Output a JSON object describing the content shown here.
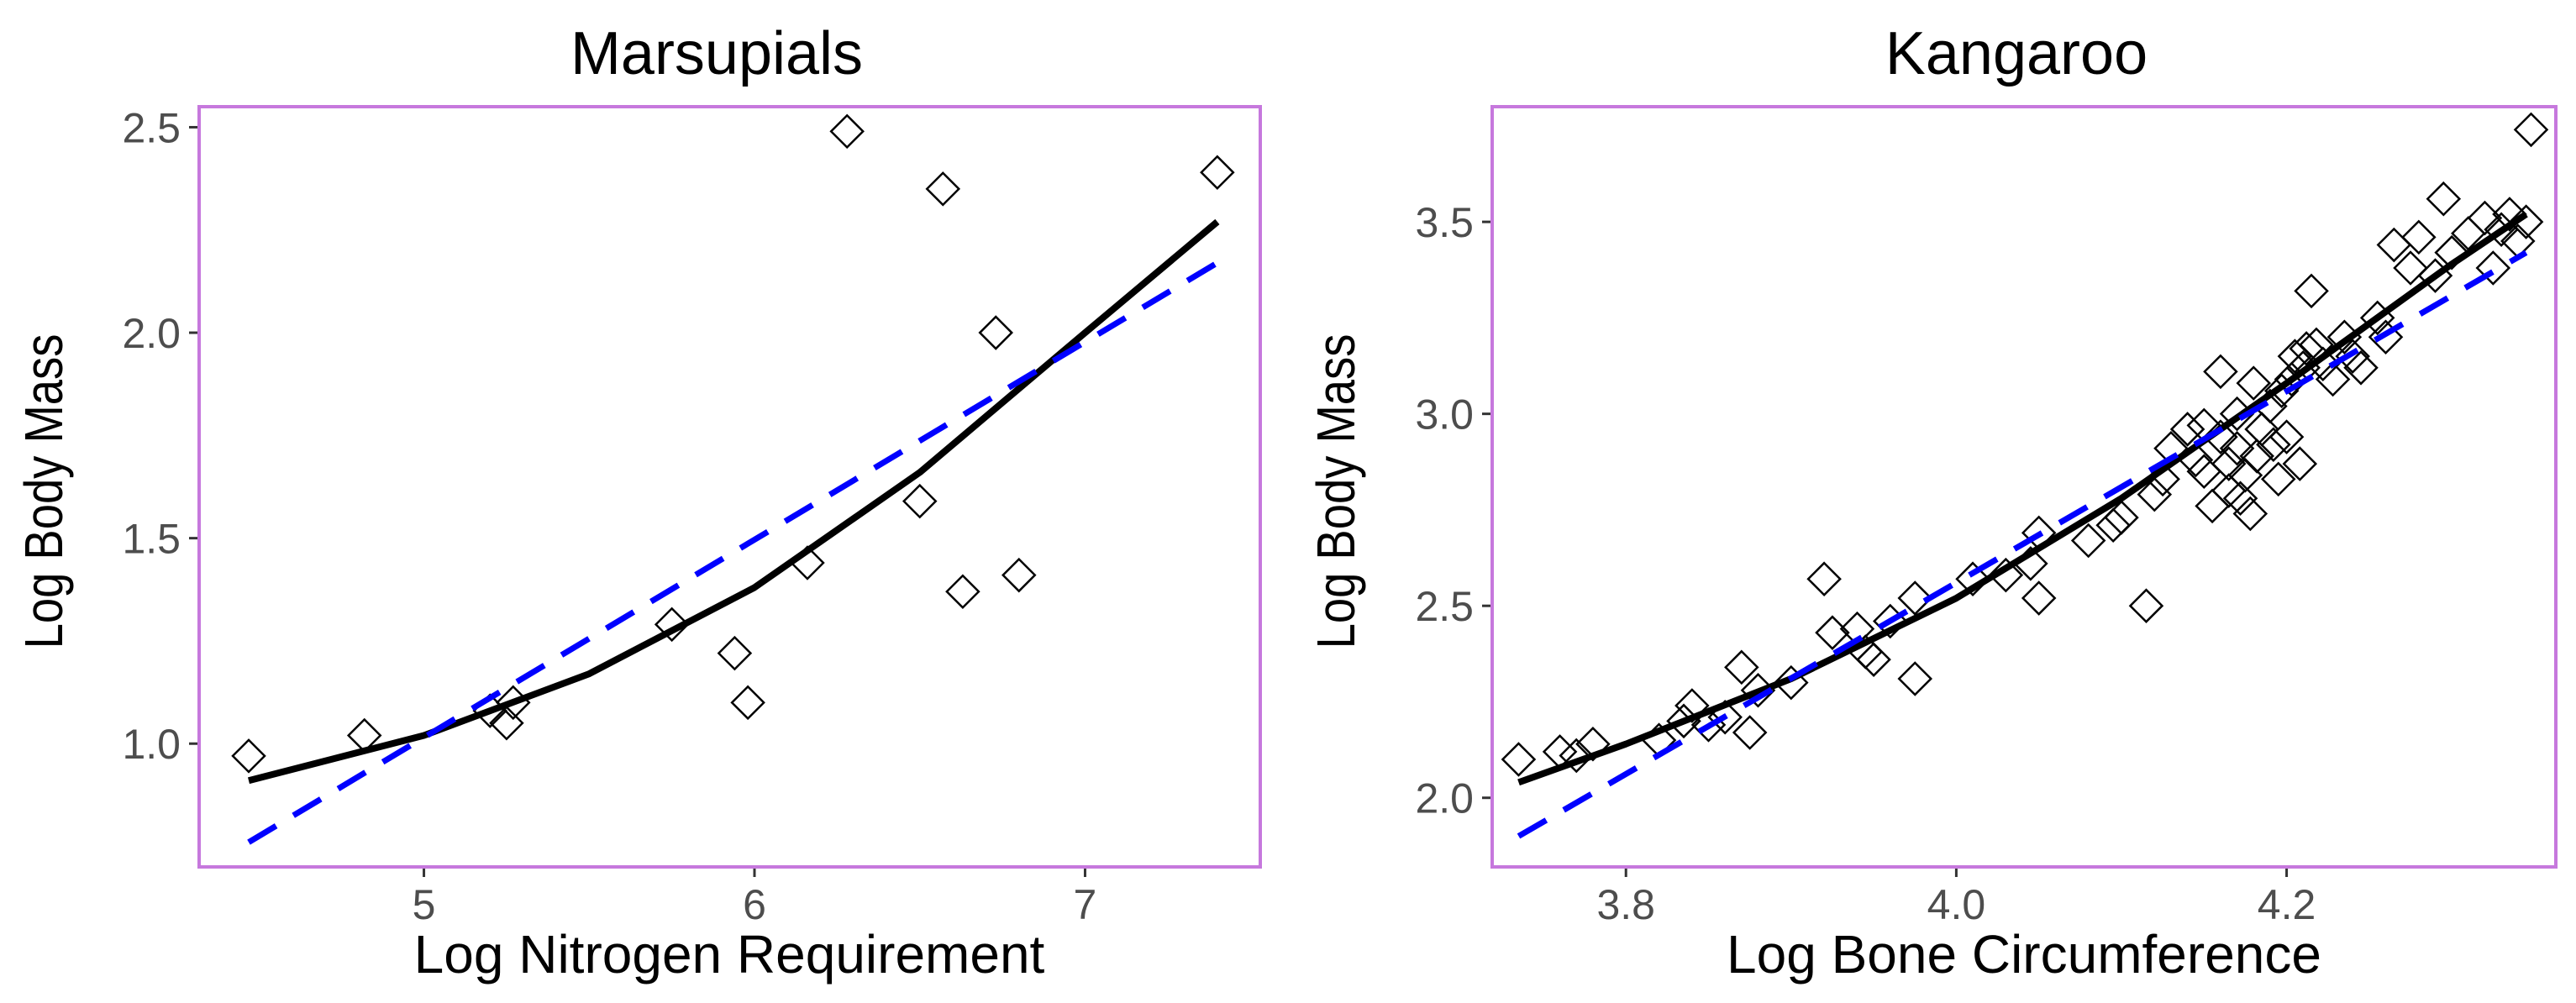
{
  "chart_data": [
    {
      "type": "scatter",
      "title": "Marsupials",
      "xlabel": "Log Nitrogen Requirement",
      "ylabel": "Log Body Mass",
      "xlim": [
        4.32,
        7.53
      ],
      "ylim": [
        0.7,
        2.55
      ],
      "xticks": [
        5,
        6,
        7
      ],
      "xtick_labels": [
        "5",
        "6",
        "7"
      ],
      "yticks": [
        1.0,
        1.5,
        2.0,
        2.5
      ],
      "ytick_labels": [
        "1.0",
        "1.5",
        "2.0",
        "2.5"
      ],
      "points": [
        {
          "x": 4.47,
          "y": 0.97
        },
        {
          "x": 4.82,
          "y": 1.02
        },
        {
          "x": 5.2,
          "y": 1.08
        },
        {
          "x": 5.25,
          "y": 1.05
        },
        {
          "x": 5.27,
          "y": 1.1
        },
        {
          "x": 5.75,
          "y": 1.29
        },
        {
          "x": 5.94,
          "y": 1.22
        },
        {
          "x": 5.98,
          "y": 1.1
        },
        {
          "x": 6.16,
          "y": 1.44
        },
        {
          "x": 6.28,
          "y": 2.49
        },
        {
          "x": 6.5,
          "y": 1.59
        },
        {
          "x": 6.57,
          "y": 2.35
        },
        {
          "x": 6.63,
          "y": 1.37
        },
        {
          "x": 6.73,
          "y": 2.0
        },
        {
          "x": 6.8,
          "y": 1.41
        },
        {
          "x": 7.4,
          "y": 2.39
        }
      ],
      "series": [
        {
          "name": "fitted curve (solid black)",
          "style": "solid",
          "color": "#000000",
          "x": [
            4.47,
            5.0,
            5.5,
            6.0,
            6.5,
            7.0,
            7.4
          ],
          "y": [
            0.91,
            1.02,
            1.17,
            1.38,
            1.66,
            2.0,
            2.27
          ]
        },
        {
          "name": "linear fit (dashed blue)",
          "style": "dashed",
          "color": "#0000ff",
          "x": [
            4.47,
            7.4
          ],
          "y": [
            0.76,
            2.17
          ]
        }
      ]
    },
    {
      "type": "scatter",
      "title": "Kangaroo",
      "xlabel": "Log Bone Circumference",
      "ylabel": "Log Body Mass",
      "xlim": [
        3.719,
        4.363
      ],
      "ylim": [
        1.82,
        3.8
      ],
      "xticks": [
        3.8,
        4.0,
        4.2
      ],
      "xtick_labels": [
        "3.8",
        "4.0",
        "4.2"
      ],
      "yticks": [
        2.0,
        2.5,
        3.0,
        3.5
      ],
      "ytick_labels": [
        "2.0",
        "2.5",
        "3.0",
        "3.5"
      ],
      "points": [
        {
          "x": 3.735,
          "y": 2.1
        },
        {
          "x": 3.76,
          "y": 2.12
        },
        {
          "x": 3.77,
          "y": 2.11
        },
        {
          "x": 3.78,
          "y": 2.14
        },
        {
          "x": 3.82,
          "y": 2.15
        },
        {
          "x": 3.835,
          "y": 2.2
        },
        {
          "x": 3.84,
          "y": 2.24
        },
        {
          "x": 3.85,
          "y": 2.19
        },
        {
          "x": 3.86,
          "y": 2.21
        },
        {
          "x": 3.87,
          "y": 2.34
        },
        {
          "x": 3.875,
          "y": 2.17
        },
        {
          "x": 3.88,
          "y": 2.28
        },
        {
          "x": 3.9,
          "y": 2.3
        },
        {
          "x": 3.92,
          "y": 2.57
        },
        {
          "x": 3.925,
          "y": 2.43
        },
        {
          "x": 3.94,
          "y": 2.44
        },
        {
          "x": 3.945,
          "y": 2.38
        },
        {
          "x": 3.95,
          "y": 2.36
        },
        {
          "x": 3.96,
          "y": 2.46
        },
        {
          "x": 3.975,
          "y": 2.52
        },
        {
          "x": 3.975,
          "y": 2.31
        },
        {
          "x": 4.01,
          "y": 2.57
        },
        {
          "x": 4.03,
          "y": 2.58
        },
        {
          "x": 4.045,
          "y": 2.61
        },
        {
          "x": 4.05,
          "y": 2.52
        },
        {
          "x": 4.05,
          "y": 2.69
        },
        {
          "x": 4.08,
          "y": 2.67
        },
        {
          "x": 4.095,
          "y": 2.71
        },
        {
          "x": 4.1,
          "y": 2.73
        },
        {
          "x": 4.115,
          "y": 2.5
        },
        {
          "x": 4.12,
          "y": 2.79
        },
        {
          "x": 4.125,
          "y": 2.83
        },
        {
          "x": 4.13,
          "y": 2.91
        },
        {
          "x": 4.14,
          "y": 2.96
        },
        {
          "x": 4.145,
          "y": 2.88
        },
        {
          "x": 4.15,
          "y": 2.85
        },
        {
          "x": 4.15,
          "y": 2.97
        },
        {
          "x": 4.155,
          "y": 2.76
        },
        {
          "x": 4.16,
          "y": 3.11
        },
        {
          "x": 4.16,
          "y": 2.94
        },
        {
          "x": 4.165,
          "y": 2.8
        },
        {
          "x": 4.165,
          "y": 2.87
        },
        {
          "x": 4.17,
          "y": 3.0
        },
        {
          "x": 4.17,
          "y": 2.91
        },
        {
          "x": 4.172,
          "y": 2.78
        },
        {
          "x": 4.175,
          "y": 2.84
        },
        {
          "x": 4.178,
          "y": 2.74
        },
        {
          "x": 4.18,
          "y": 3.08
        },
        {
          "x": 4.182,
          "y": 2.89
        },
        {
          "x": 4.185,
          "y": 2.96
        },
        {
          "x": 4.19,
          "y": 3.02
        },
        {
          "x": 4.192,
          "y": 2.92
        },
        {
          "x": 4.195,
          "y": 2.83
        },
        {
          "x": 4.197,
          "y": 3.06
        },
        {
          "x": 4.2,
          "y": 2.94
        },
        {
          "x": 4.203,
          "y": 3.09
        },
        {
          "x": 4.205,
          "y": 3.15
        },
        {
          "x": 4.208,
          "y": 2.87
        },
        {
          "x": 4.21,
          "y": 3.12
        },
        {
          "x": 4.212,
          "y": 3.17
        },
        {
          "x": 4.215,
          "y": 3.32
        },
        {
          "x": 4.218,
          "y": 3.18
        },
        {
          "x": 4.222,
          "y": 3.13
        },
        {
          "x": 4.228,
          "y": 3.09
        },
        {
          "x": 4.235,
          "y": 3.2
        },
        {
          "x": 4.24,
          "y": 3.15
        },
        {
          "x": 4.245,
          "y": 3.12
        },
        {
          "x": 4.255,
          "y": 3.25
        },
        {
          "x": 4.26,
          "y": 3.2
        },
        {
          "x": 4.265,
          "y": 3.44
        },
        {
          "x": 4.275,
          "y": 3.38
        },
        {
          "x": 4.28,
          "y": 3.46
        },
        {
          "x": 4.29,
          "y": 3.36
        },
        {
          "x": 4.295,
          "y": 3.56
        },
        {
          "x": 4.3,
          "y": 3.42
        },
        {
          "x": 4.31,
          "y": 3.47
        },
        {
          "x": 4.32,
          "y": 3.51
        },
        {
          "x": 4.325,
          "y": 3.38
        },
        {
          "x": 4.33,
          "y": 3.48
        },
        {
          "x": 4.335,
          "y": 3.52
        },
        {
          "x": 4.34,
          "y": 3.45
        },
        {
          "x": 4.345,
          "y": 3.5
        },
        {
          "x": 4.348,
          "y": 3.74
        }
      ],
      "series": [
        {
          "name": "fitted curve (solid black)",
          "style": "solid",
          "color": "#000000",
          "x": [
            3.735,
            3.8,
            3.9,
            4.0,
            4.1,
            4.2,
            4.3,
            4.345
          ],
          "y": [
            2.04,
            2.14,
            2.31,
            2.52,
            2.78,
            3.08,
            3.39,
            3.52
          ]
        },
        {
          "name": "linear fit (dashed blue)",
          "style": "dashed",
          "color": "#0000ff",
          "x": [
            3.735,
            4.345
          ],
          "y": [
            1.9,
            3.42
          ]
        }
      ]
    }
  ]
}
